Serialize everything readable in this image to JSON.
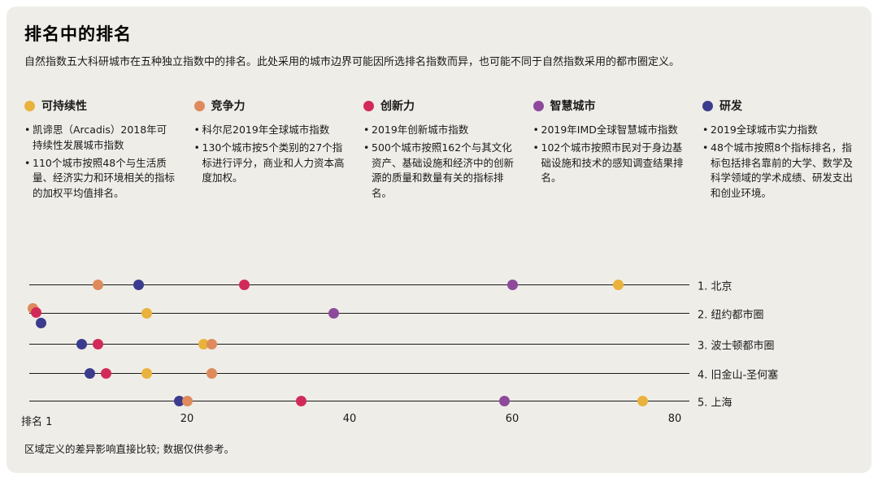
{
  "page": {
    "title": "排名中的排名",
    "subtitle": "自然指数五大科研城市在五种独立指数中的排名。此处采用的城市边界可能因所选排名指数而异，也可能不同于自然指数采用的都市圈定义。",
    "footnote": "区域定义的差异影响直接比较; 数据仅供参考。",
    "background_color": "#efede8",
    "line_color": "#1a1a1a"
  },
  "legend": {
    "items": [
      {
        "id": "sustainability",
        "label": "可持续性",
        "color": "#e9b23c",
        "bullets": [
          "凯谛思（Arcadis）2018年可持续性发展城市指数",
          "110个城市按照48个与生活质量、经济实力和环境相关的指标的加权平均值排名。"
        ]
      },
      {
        "id": "competitiveness",
        "label": "竞争力",
        "color": "#de8a5c",
        "bullets": [
          "科尔尼2019年全球城市指数",
          "130个城市按5个类别的27个指标进行评分，商业和人力资本高度加权。"
        ]
      },
      {
        "id": "innovation",
        "label": "创新力",
        "color": "#d22a58",
        "bullets": [
          "2019年创新城市指数",
          "500个城市按照162个与其文化资产、基础设施和经济中的创新源的质量和数量有关的指标排名。"
        ]
      },
      {
        "id": "smart_city",
        "label": "智慧城市",
        "color": "#8d4a9c",
        "bullets": [
          "2019年IMD全球智慧城市指数",
          "102个城市按照市民对于身边基础设施和技术的感知调查结果排名。"
        ]
      },
      {
        "id": "rd",
        "label": "研发",
        "color": "#3c3c8e",
        "bullets": [
          "2019全球城市实力指数",
          "48个城市按照8个指标排名，指标包括排名靠前的大学、数学及科学领域的学术成绩、研发支出和创业环境。"
        ]
      }
    ]
  },
  "chart_data": {
    "type": "scatter",
    "title": "排名中的排名",
    "x_axis": {
      "label": "排名",
      "min": 1,
      "max": 80,
      "ticks": [
        1,
        20,
        40,
        60,
        80
      ],
      "tick_labels": [
        "排名 1",
        "20",
        "40",
        "60",
        "80"
      ]
    },
    "legend_position": "top",
    "rows": [
      {
        "label": "1. 北京",
        "city": "北京",
        "points": [
          {
            "series": "competitiveness",
            "rank": 9
          },
          {
            "series": "rd",
            "rank": 14
          },
          {
            "series": "innovation",
            "rank": 27
          },
          {
            "series": "smart_city",
            "rank": 60
          },
          {
            "series": "sustainability",
            "rank": 73
          }
        ]
      },
      {
        "label": "2. 纽约都市圈",
        "city": "纽约都市圈",
        "points": [
          {
            "series": "competitiveness",
            "rank": 1,
            "dy": -6
          },
          {
            "series": "innovation",
            "rank": 1,
            "dx": 4,
            "dy": -1
          },
          {
            "series": "rd",
            "rank": 2,
            "dy": 12
          },
          {
            "series": "sustainability",
            "rank": 15
          },
          {
            "series": "smart_city",
            "rank": 38
          }
        ]
      },
      {
        "label": "3. 波士顿都市圈",
        "city": "波士顿都市圈",
        "points": [
          {
            "series": "rd",
            "rank": 7
          },
          {
            "series": "innovation",
            "rank": 9
          },
          {
            "series": "sustainability",
            "rank": 22
          },
          {
            "series": "competitiveness",
            "rank": 23
          }
        ]
      },
      {
        "label": "4. 旧金山-圣何塞",
        "city": "旧金山-圣何塞",
        "points": [
          {
            "series": "rd",
            "rank": 8
          },
          {
            "series": "innovation",
            "rank": 10
          },
          {
            "series": "sustainability",
            "rank": 15
          },
          {
            "series": "competitiveness",
            "rank": 23
          }
        ]
      },
      {
        "label": "5. 上海",
        "city": "上海",
        "points": [
          {
            "series": "rd",
            "rank": 19
          },
          {
            "series": "competitiveness",
            "rank": 20
          },
          {
            "series": "innovation",
            "rank": 34
          },
          {
            "series": "smart_city",
            "rank": 59
          },
          {
            "series": "sustainability",
            "rank": 76
          }
        ]
      }
    ]
  }
}
